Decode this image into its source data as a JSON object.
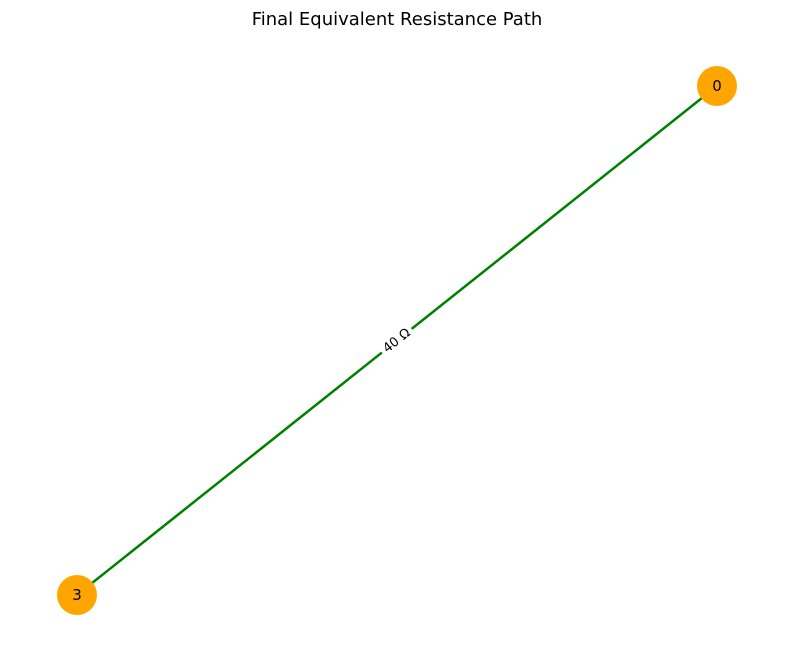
{
  "title": "Final Equivalent Resistance Path",
  "colors": {
    "node_fill": "#FFA500",
    "edge_stroke": "#008000",
    "text": "#000000",
    "background": "#FFFFFF"
  },
  "nodes": [
    {
      "id": "0",
      "label": "0"
    },
    {
      "id": "3",
      "label": "3"
    }
  ],
  "edges": [
    {
      "from": "0",
      "to": "3",
      "label": "40 Ω"
    }
  ]
}
